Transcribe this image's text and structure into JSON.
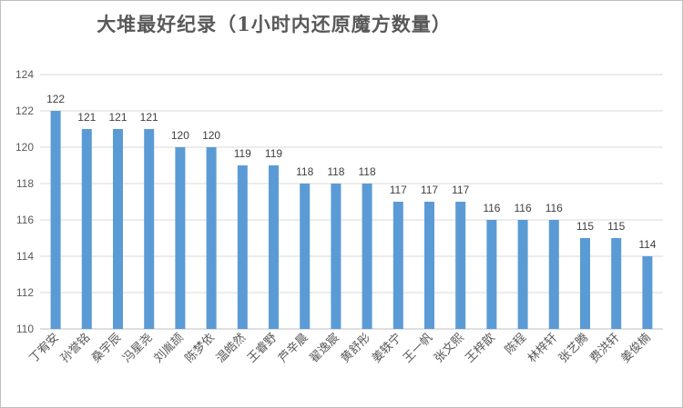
{
  "chart_data": {
    "type": "bar",
    "title": "大堆最好纪录（1小时内还原魔方数量）",
    "categories": [
      "丁宥安",
      "孙誉铭",
      "桑宇辰",
      "冯星尧",
      "刘胤颉",
      "陈梦依",
      "温皓然",
      "王睿野",
      "芦辛晨",
      "翟逸宸",
      "黄舒彤",
      "姜轶宁",
      "王一帆",
      "张文熙",
      "王梓歆",
      "陈程",
      "林梓轩",
      "张艺腾",
      "费洪轩",
      "姜俊楠"
    ],
    "values": [
      122,
      121,
      121,
      121,
      120,
      120,
      119,
      119,
      118,
      118,
      118,
      117,
      117,
      117,
      116,
      116,
      116,
      115,
      115,
      114
    ],
    "yticks": [
      110,
      112,
      114,
      116,
      118,
      120,
      122,
      124
    ],
    "ylim": [
      110,
      124
    ],
    "xlabel": "",
    "ylabel": "",
    "grid": true,
    "legend": "none",
    "bar_color": "#5b9bd5"
  }
}
